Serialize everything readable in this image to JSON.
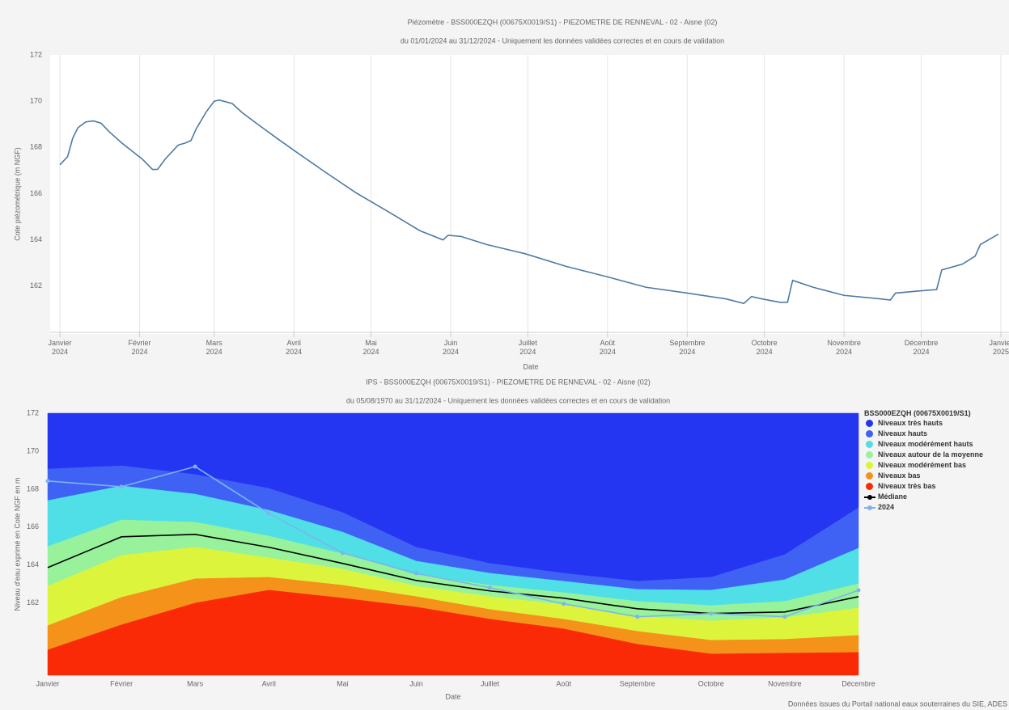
{
  "chart_data": [
    {
      "type": "line",
      "title": "Piézomètre - BSS000EZQH (00675X0019/S1) - PIEZOMETRE DE RENNEVAL - 02 - Aisne (02)",
      "subtitle": "du 01/01/2024 au 31/12/2024 - Uniquement les données validées correctes et en cours de validation",
      "y_label": "Cote piézométrique (m NGF)",
      "x_label": "Date",
      "x": [
        "2024-01-01",
        "2024-01-04",
        "2024-01-06",
        "2024-01-08",
        "2024-01-11",
        "2024-01-14",
        "2024-01-17",
        "2024-01-20",
        "2024-01-25",
        "2024-01-29",
        "2024-02-02",
        "2024-02-06",
        "2024-02-08",
        "2024-02-11",
        "2024-02-16",
        "2024-02-19",
        "2024-02-21",
        "2024-02-23",
        "2024-02-27",
        "2024-03-01",
        "2024-03-03",
        "2024-03-08",
        "2024-03-12",
        "2024-03-18",
        "2024-03-26",
        "2024-04-02",
        "2024-04-13",
        "2024-04-25",
        "2024-05-08",
        "2024-05-20",
        "2024-05-29",
        "2024-05-31",
        "2024-06-05",
        "2024-06-15",
        "2024-06-30",
        "2024-07-16",
        "2024-08-01",
        "2024-08-16",
        "2024-09-01",
        "2024-09-16",
        "2024-09-23",
        "2024-09-26",
        "2024-09-30",
        "2024-10-07",
        "2024-10-10",
        "2024-10-12",
        "2024-10-20",
        "2024-11-01",
        "2024-11-15",
        "2024-11-19",
        "2024-11-21",
        "2024-12-01",
        "2024-12-07",
        "2024-12-09",
        "2024-12-17",
        "2024-12-22",
        "2024-12-24",
        "2024-12-31"
      ],
      "series": [
        {
          "color": "#4d7aa6",
          "values": [
            167.25,
            167.6,
            168.4,
            168.85,
            169.1,
            169.15,
            169.05,
            168.7,
            168.2,
            167.85,
            167.5,
            167.05,
            167.05,
            167.5,
            168.1,
            168.2,
            168.3,
            168.8,
            169.55,
            170.0,
            170.05,
            169.9,
            169.5,
            169.0,
            168.35,
            167.8,
            166.95,
            166.05,
            165.2,
            164.4,
            164.0,
            164.2,
            164.15,
            163.8,
            163.4,
            162.85,
            162.4,
            161.95,
            161.7,
            161.45,
            161.25,
            161.55,
            161.45,
            161.3,
            161.3,
            162.25,
            161.95,
            161.6,
            161.45,
            161.4,
            161.7,
            161.8,
            161.85,
            162.7,
            162.95,
            163.3,
            163.8,
            164.25
          ]
        }
      ],
      "xlim": [
        "2024-01-01",
        "2025-01-01"
      ],
      "xticks": [
        {
          "value": "2024-01-01",
          "label": "Janvier\n2024"
        },
        {
          "value": "2024-02-01",
          "label": "Février\n2024"
        },
        {
          "value": "2024-03-01",
          "label": "Mars\n2024"
        },
        {
          "value": "2024-04-01",
          "label": "Avril\n2024"
        },
        {
          "value": "2024-05-01",
          "label": "Mai\n2024"
        },
        {
          "value": "2024-06-01",
          "label": "Juin\n2024"
        },
        {
          "value": "2024-07-01",
          "label": "Juillet\n2024"
        },
        {
          "value": "2024-08-01",
          "label": "Août\n2024"
        },
        {
          "value": "2024-09-01",
          "label": "Septembre\n2024"
        },
        {
          "value": "2024-10-01",
          "label": "Octobre\n2024"
        },
        {
          "value": "2024-11-01",
          "label": "Novembre\n2024"
        },
        {
          "value": "2024-12-01",
          "label": "Décembre\n2024"
        },
        {
          "value": "2025-01-01",
          "label": "Janvier\n2025"
        }
      ],
      "ylim": [
        160,
        172
      ],
      "yticks": [
        162,
        164,
        166,
        168,
        170,
        172
      ],
      "grid": "x"
    },
    {
      "type": "area",
      "title": "IPS - BSS000EZQH (00675X0019/S1) - PIEZOMETRE DE RENNEVAL - 02 - Aisne (02)",
      "subtitle": "du 05/08/1970 au 31/12/2024 - Uniquement les données validées correctes et en cours de validation",
      "y_label": "Niveau d'eau exprimé en Cote NGF en m",
      "x_label": "Date",
      "categories": [
        "Janvier",
        "Février",
        "Mars",
        "Avril",
        "Mai",
        "Juin",
        "Juillet",
        "Août",
        "Septembre",
        "Octobre",
        "Novembre",
        "Décembre"
      ],
      "legend_title": "BSS000EZQH (00675X0019/S1)",
      "legend": "right",
      "series": [
        {
          "name": "Niveaux très hauts",
          "type": "area",
          "color": "#2436f2"
        },
        {
          "name": "Niveaux hauts",
          "type": "area",
          "color": "#3f62f4",
          "values": [
            169.06,
            169.23,
            168.77,
            168.04,
            166.77,
            164.94,
            164.09,
            163.57,
            163.15,
            163.36,
            164.55,
            167.02
          ]
        },
        {
          "name": "Niveaux modérément hauts",
          "type": "area",
          "color": "#50dfe6",
          "values": [
            167.4,
            168.17,
            167.74,
            166.89,
            165.74,
            164.21,
            163.57,
            163.15,
            162.72,
            162.68,
            163.23,
            164.89
          ]
        },
        {
          "name": "Niveaux autour de la moyenne",
          "type": "area",
          "color": "#98f29b",
          "values": [
            164.98,
            166.38,
            166.26,
            165.53,
            164.6,
            163.49,
            162.94,
            162.55,
            162.09,
            161.87,
            162.09,
            163.02
          ]
        },
        {
          "name": "Niveaux modérément bas",
          "type": "area",
          "color": "#dcf53c",
          "values": [
            162.89,
            164.51,
            164.94,
            164.38,
            163.79,
            162.89,
            162.34,
            161.91,
            161.32,
            161.06,
            161.23,
            161.74
          ]
        },
        {
          "name": "Niveaux bas",
          "type": "area",
          "color": "#f4921a",
          "values": [
            160.81,
            162.3,
            163.28,
            163.36,
            162.94,
            162.34,
            161.66,
            161.15,
            160.51,
            160.04,
            160.09,
            160.3
          ]
        },
        {
          "name": "Niveaux très bas",
          "type": "area",
          "color": "#fa2a06",
          "values": [
            159.53,
            160.85,
            162.0,
            162.68,
            162.26,
            161.79,
            161.15,
            160.64,
            159.83,
            159.32,
            159.36,
            159.4
          ]
        },
        {
          "name": "Médiane",
          "type": "line",
          "color": "#000000",
          "values": [
            163.87,
            165.49,
            165.62,
            164.94,
            164.09,
            163.19,
            162.64,
            162.26,
            161.7,
            161.45,
            161.53,
            162.34
          ]
        },
        {
          "name": "2024",
          "type": "line",
          "color": "#7cb5ec",
          "marker": true,
          "values": [
            168.43,
            168.13,
            169.19,
            166.72,
            164.64,
            163.57,
            162.81,
            161.96,
            161.28,
            161.45,
            161.28,
            162.68
          ]
        }
      ],
      "ylim": [
        158.2,
        172
      ],
      "yticks": [
        162,
        164,
        166,
        168,
        170,
        172
      ],
      "credits": "Données issues du Portail national eaux souterraines du SIE, ADES"
    }
  ]
}
